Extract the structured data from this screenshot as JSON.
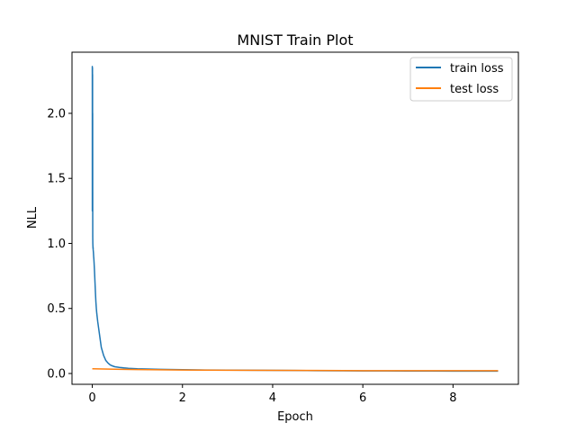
{
  "chart_data": {
    "type": "line",
    "title": "MNIST Train Plot",
    "xlabel": "Epoch",
    "ylabel": "NLL",
    "xlim": [
      -0.45,
      9.45
    ],
    "ylim": [
      -0.083,
      2.47
    ],
    "xticks": [
      0,
      2,
      4,
      6,
      8
    ],
    "xtick_labels": [
      "0",
      "2",
      "4",
      "6",
      "8"
    ],
    "yticks": [
      0.0,
      0.5,
      1.0,
      1.5,
      2.0
    ],
    "ytick_labels": [
      "0.0",
      "0.5",
      "1.0",
      "1.5",
      "2.0"
    ],
    "grid": false,
    "legend_position": "top-right",
    "series": [
      {
        "name": "train loss",
        "color": "#1f77b4",
        "x": [
          0,
          0.0005,
          0.001,
          0.002,
          0.003,
          0.004,
          0.005,
          0.006,
          0.007,
          0.008,
          0.009,
          0.01,
          0.012,
          0.014,
          0.016,
          0.018,
          0.02,
          0.025,
          0.03,
          0.035,
          0.04,
          0.05,
          0.06,
          0.07,
          0.08,
          0.09,
          0.1,
          0.12,
          0.14,
          0.16,
          0.18,
          0.2,
          0.25,
          0.3,
          0.35,
          0.4,
          0.45,
          0.5,
          0.6,
          0.7,
          0.8,
          0.9,
          1.0,
          1.5,
          2.0,
          2.5,
          3.0,
          3.5,
          4.0,
          4.5,
          5.0,
          5.5,
          6.0,
          6.5,
          7.0,
          7.5,
          8.0,
          8.5,
          9.0
        ],
        "values": [
          2.32,
          2.36,
          1.25,
          2.34,
          2.2,
          2.35,
          1.9,
          2.3,
          1.6,
          2.0,
          1.4,
          1.05,
          1.0,
          0.98,
          0.96,
          0.97,
          0.95,
          0.93,
          0.9,
          0.88,
          0.85,
          0.78,
          0.7,
          0.62,
          0.55,
          0.5,
          0.46,
          0.4,
          0.35,
          0.3,
          0.25,
          0.2,
          0.14,
          0.1,
          0.08,
          0.065,
          0.058,
          0.052,
          0.047,
          0.043,
          0.04,
          0.038,
          0.036,
          0.032,
          0.029,
          0.027,
          0.026,
          0.025,
          0.024,
          0.023,
          0.022,
          0.021,
          0.02,
          0.02,
          0.019,
          0.019,
          0.018,
          0.018,
          0.018
        ]
      },
      {
        "name": "test loss",
        "color": "#ff7f0e",
        "x": [
          0,
          1,
          2,
          3,
          4,
          5,
          6,
          7,
          8,
          9
        ],
        "values": [
          0.036,
          0.03,
          0.027,
          0.025,
          0.024,
          0.023,
          0.022,
          0.022,
          0.022,
          0.022
        ]
      }
    ]
  }
}
